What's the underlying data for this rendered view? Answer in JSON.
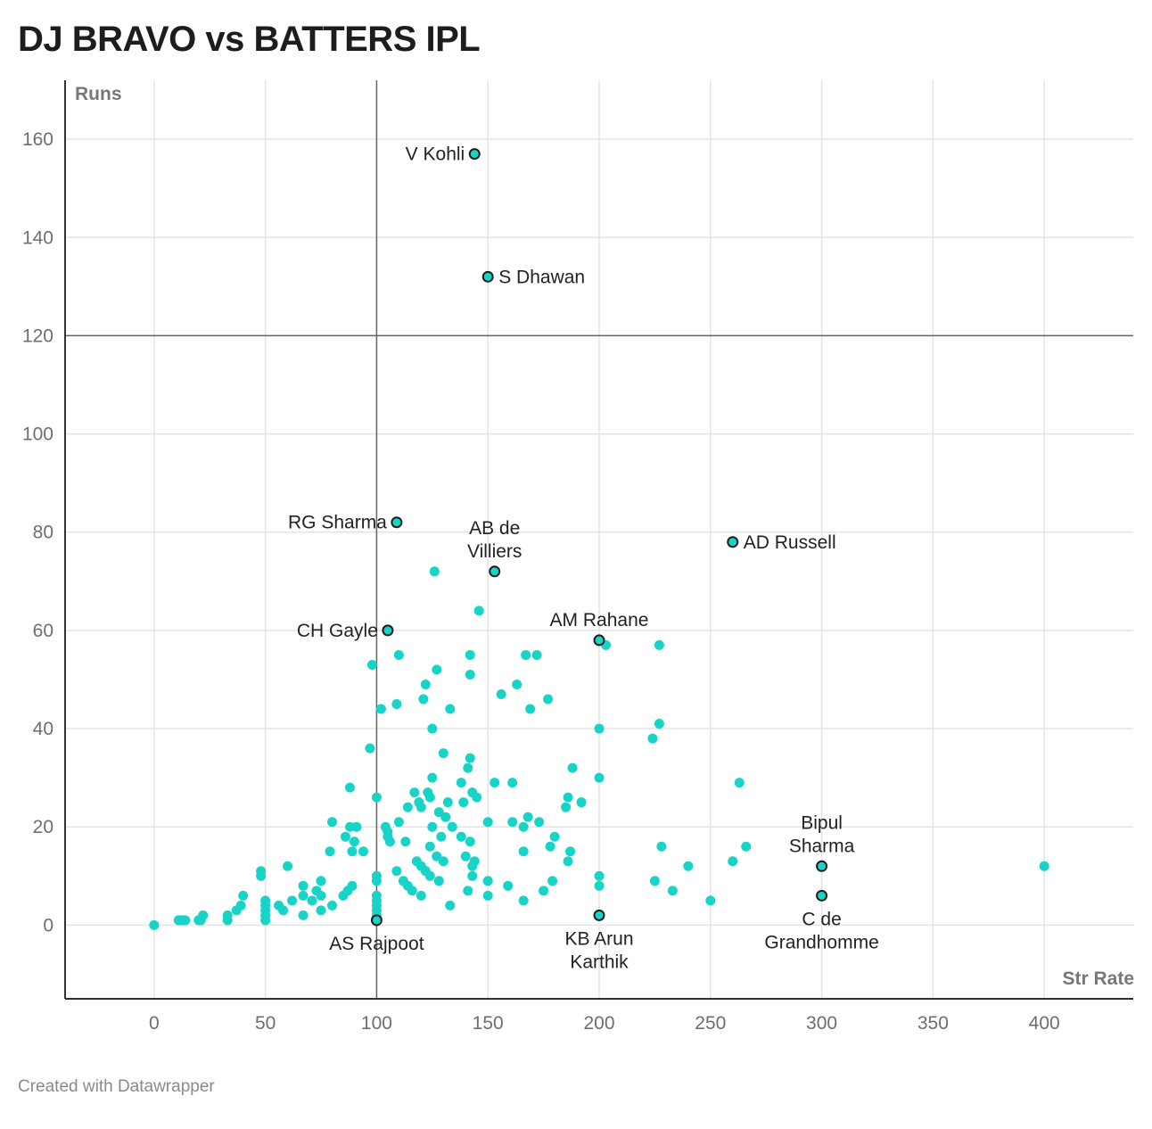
{
  "title": "DJ BRAVO vs BATTERS IPL",
  "footer": "Created with Datawrapper",
  "colors": {
    "point": "#18d3c7",
    "highlight_stroke": "#1d1d1d",
    "grid": "#e4e4e4",
    "axis": "#333333",
    "reference": "#666666"
  },
  "chart_data": {
    "type": "scatter",
    "title": "DJ BRAVO vs BATTERS IPL",
    "xlabel": "Str Rate",
    "ylabel": "Runs",
    "xlim": [
      -40,
      440
    ],
    "ylim": [
      -15,
      172
    ],
    "x_ticks": [
      0,
      50,
      100,
      150,
      200,
      250,
      300,
      350,
      400
    ],
    "y_ticks": [
      0,
      20,
      40,
      60,
      80,
      100,
      120,
      140,
      160
    ],
    "grid": true,
    "reference_lines": {
      "x": 100,
      "y": 120
    },
    "highlighted": [
      {
        "label": "V Kohli",
        "x": 144,
        "y": 157,
        "label_pos": "left"
      },
      {
        "label": "S Dhawan",
        "x": 150,
        "y": 132,
        "label_pos": "right"
      },
      {
        "label": "RG Sharma",
        "x": 109,
        "y": 82,
        "label_pos": "left"
      },
      {
        "label": "AB de Villiers",
        "x": 153,
        "y": 72,
        "label_pos": "top",
        "label_lines": [
          "AB de",
          "Villiers"
        ]
      },
      {
        "label": "AD Russell",
        "x": 260,
        "y": 78,
        "label_pos": "right"
      },
      {
        "label": "CH Gayle",
        "x": 105,
        "y": 60,
        "label_pos": "left"
      },
      {
        "label": "AM Rahane",
        "x": 200,
        "y": 58,
        "label_pos": "top"
      },
      {
        "label": "Bipul Sharma",
        "x": 300,
        "y": 12,
        "label_pos": "top",
        "label_lines": [
          "Bipul",
          "Sharma"
        ]
      },
      {
        "label": "C de Grandhomme",
        "x": 300,
        "y": 6,
        "label_pos": "bottom",
        "label_lines": [
          "C de",
          "Grandhomme"
        ]
      },
      {
        "label": "AS Rajpoot",
        "x": 100,
        "y": 1,
        "label_pos": "bottom"
      },
      {
        "label": "KB Arun Karthik",
        "x": 200,
        "y": 2,
        "label_pos": "bottom",
        "label_lines": [
          "KB Arun",
          "Karthik"
        ]
      }
    ],
    "points": [
      [
        0,
        0
      ],
      [
        11,
        1
      ],
      [
        12,
        1
      ],
      [
        13,
        1
      ],
      [
        14,
        1
      ],
      [
        20,
        1
      ],
      [
        21,
        1
      ],
      [
        22,
        2
      ],
      [
        33,
        1
      ],
      [
        33,
        2
      ],
      [
        37,
        3
      ],
      [
        39,
        4
      ],
      [
        40,
        6
      ],
      [
        48,
        10
      ],
      [
        48,
        11
      ],
      [
        50,
        1
      ],
      [
        50,
        2
      ],
      [
        50,
        3
      ],
      [
        50,
        4
      ],
      [
        50,
        5
      ],
      [
        56,
        4
      ],
      [
        58,
        3
      ],
      [
        60,
        12
      ],
      [
        62,
        5
      ],
      [
        67,
        2
      ],
      [
        67,
        6
      ],
      [
        67,
        8
      ],
      [
        71,
        5
      ],
      [
        73,
        7
      ],
      [
        75,
        3
      ],
      [
        75,
        6
      ],
      [
        75,
        9
      ],
      [
        80,
        4
      ],
      [
        79,
        15
      ],
      [
        80,
        21
      ],
      [
        85,
        6
      ],
      [
        86,
        18
      ],
      [
        87,
        7
      ],
      [
        88,
        20
      ],
      [
        88,
        28
      ],
      [
        89,
        8
      ],
      [
        89,
        15
      ],
      [
        90,
        17
      ],
      [
        91,
        20
      ],
      [
        94,
        15
      ],
      [
        97,
        36
      ],
      [
        98,
        53
      ],
      [
        100,
        2
      ],
      [
        100,
        3
      ],
      [
        100,
        4
      ],
      [
        100,
        5
      ],
      [
        100,
        6
      ],
      [
        100,
        9
      ],
      [
        100,
        10
      ],
      [
        100,
        26
      ],
      [
        102,
        44
      ],
      [
        104,
        20
      ],
      [
        105,
        19
      ],
      [
        105,
        18
      ],
      [
        106,
        17
      ],
      [
        109,
        11
      ],
      [
        110,
        21
      ],
      [
        109,
        45
      ],
      [
        110,
        55
      ],
      [
        112,
        9
      ],
      [
        113,
        17
      ],
      [
        114,
        8
      ],
      [
        114,
        24
      ],
      [
        116,
        7
      ],
      [
        117,
        27
      ],
      [
        118,
        13
      ],
      [
        119,
        25
      ],
      [
        120,
        6
      ],
      [
        120,
        12
      ],
      [
        120,
        24
      ],
      [
        121,
        46
      ],
      [
        122,
        49
      ],
      [
        122,
        11
      ],
      [
        123,
        27
      ],
      [
        124,
        16
      ],
      [
        124,
        26
      ],
      [
        124,
        10
      ],
      [
        125,
        20
      ],
      [
        125,
        30
      ],
      [
        125,
        40
      ],
      [
        126,
        72
      ],
      [
        127,
        52
      ],
      [
        127,
        14
      ],
      [
        128,
        23
      ],
      [
        128,
        9
      ],
      [
        129,
        18
      ],
      [
        130,
        35
      ],
      [
        130,
        13
      ],
      [
        131,
        22
      ],
      [
        132,
        25
      ],
      [
        133,
        4
      ],
      [
        133,
        44
      ],
      [
        134,
        20
      ],
      [
        138,
        29
      ],
      [
        138,
        18
      ],
      [
        139,
        25
      ],
      [
        140,
        14
      ],
      [
        141,
        7
      ],
      [
        141,
        32
      ],
      [
        142,
        55
      ],
      [
        142,
        51
      ],
      [
        142,
        17
      ],
      [
        142,
        34
      ],
      [
        143,
        12
      ],
      [
        143,
        27
      ],
      [
        143,
        10
      ],
      [
        144,
        13
      ],
      [
        145,
        26
      ],
      [
        146,
        64
      ],
      [
        150,
        21
      ],
      [
        150,
        9
      ],
      [
        150,
        6
      ],
      [
        153,
        29
      ],
      [
        156,
        47
      ],
      [
        159,
        8
      ],
      [
        161,
        29
      ],
      [
        161,
        21
      ],
      [
        163,
        49
      ],
      [
        166,
        5
      ],
      [
        166,
        15
      ],
      [
        166,
        20
      ],
      [
        167,
        55
      ],
      [
        168,
        22
      ],
      [
        169,
        44
      ],
      [
        172,
        55
      ],
      [
        173,
        21
      ],
      [
        175,
        7
      ],
      [
        177,
        46
      ],
      [
        178,
        16
      ],
      [
        179,
        9
      ],
      [
        180,
        18
      ],
      [
        185,
        24
      ],
      [
        186,
        13
      ],
      [
        186,
        26
      ],
      [
        187,
        15
      ],
      [
        188,
        32
      ],
      [
        192,
        25
      ],
      [
        200,
        8
      ],
      [
        200,
        10
      ],
      [
        200,
        30
      ],
      [
        200,
        40
      ],
      [
        203,
        57
      ],
      [
        225,
        9
      ],
      [
        224,
        38
      ],
      [
        227,
        41
      ],
      [
        227,
        57
      ],
      [
        228,
        16
      ],
      [
        233,
        7
      ],
      [
        240,
        12
      ],
      [
        250,
        5
      ],
      [
        260,
        13
      ],
      [
        263,
        29
      ],
      [
        266,
        16
      ],
      [
        400,
        12
      ]
    ]
  }
}
